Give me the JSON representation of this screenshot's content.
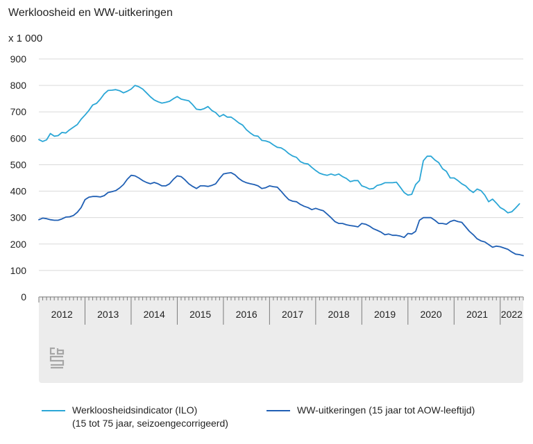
{
  "title": "Werkloosheid en WW-uitkeringen",
  "unit_label": "x 1 000",
  "colors": {
    "ilo": "#2aa6d6",
    "ww": "#1f5fb4",
    "axis_bg": "#ececec",
    "grid": "#d9d9d9",
    "logo": "#a6a6a6"
  },
  "logo": "cbs-logo",
  "chart_data": {
    "type": "line",
    "ylim": [
      0,
      900
    ],
    "yticks": [
      0,
      100,
      200,
      300,
      400,
      500,
      600,
      700,
      800,
      900
    ],
    "xlim": [
      "2012-01",
      "2022-07"
    ],
    "xlabels": [
      "2012",
      "2013",
      "2014",
      "2015",
      "2016",
      "2017",
      "2018",
      "2019",
      "2020",
      "2021",
      "2022"
    ],
    "series": [
      {
        "name": "Werkloosheidsindicator (ILO)",
        "name_line2": "(15 tot 75 jaar, seizoengecorrigeerd)",
        "color": "#2aa6d6",
        "points": [
          [
            "2012-01",
            595
          ],
          [
            "2012-02",
            588
          ],
          [
            "2012-03",
            594
          ],
          [
            "2012-04",
            618
          ],
          [
            "2012-05",
            608
          ],
          [
            "2012-06",
            610
          ],
          [
            "2012-07",
            622
          ],
          [
            "2012-08",
            620
          ],
          [
            "2012-09",
            632
          ],
          [
            "2012-10",
            642
          ],
          [
            "2012-11",
            652
          ],
          [
            "2012-12",
            672
          ],
          [
            "2013-01",
            688
          ],
          [
            "2013-02",
            705
          ],
          [
            "2013-03",
            726
          ],
          [
            "2013-04",
            732
          ],
          [
            "2013-05",
            748
          ],
          [
            "2013-06",
            768
          ],
          [
            "2013-07",
            781
          ],
          [
            "2013-08",
            782
          ],
          [
            "2013-09",
            784
          ],
          [
            "2013-10",
            780
          ],
          [
            "2013-11",
            772
          ],
          [
            "2013-12",
            778
          ],
          [
            "2014-01",
            786
          ],
          [
            "2014-02",
            800
          ],
          [
            "2014-03",
            795
          ],
          [
            "2014-04",
            786
          ],
          [
            "2014-05",
            772
          ],
          [
            "2014-06",
            757
          ],
          [
            "2014-07",
            745
          ],
          [
            "2014-08",
            738
          ],
          [
            "2014-09",
            733
          ],
          [
            "2014-10",
            736
          ],
          [
            "2014-11",
            740
          ],
          [
            "2014-12",
            750
          ],
          [
            "2015-01",
            758
          ],
          [
            "2015-02",
            748
          ],
          [
            "2015-03",
            745
          ],
          [
            "2015-04",
            742
          ],
          [
            "2015-05",
            727
          ],
          [
            "2015-06",
            710
          ],
          [
            "2015-07",
            708
          ],
          [
            "2015-08",
            712
          ],
          [
            "2015-09",
            720
          ],
          [
            "2015-10",
            705
          ],
          [
            "2015-11",
            697
          ],
          [
            "2015-12",
            682
          ],
          [
            "2016-01",
            690
          ],
          [
            "2016-02",
            680
          ],
          [
            "2016-03",
            680
          ],
          [
            "2016-04",
            670
          ],
          [
            "2016-05",
            658
          ],
          [
            "2016-06",
            650
          ],
          [
            "2016-07",
            632
          ],
          [
            "2016-08",
            620
          ],
          [
            "2016-09",
            610
          ],
          [
            "2016-10",
            608
          ],
          [
            "2016-11",
            592
          ],
          [
            "2016-12",
            590
          ],
          [
            "2017-01",
            585
          ],
          [
            "2017-02",
            575
          ],
          [
            "2017-03",
            566
          ],
          [
            "2017-04",
            564
          ],
          [
            "2017-05",
            555
          ],
          [
            "2017-06",
            542
          ],
          [
            "2017-07",
            533
          ],
          [
            "2017-08",
            528
          ],
          [
            "2017-09",
            512
          ],
          [
            "2017-10",
            505
          ],
          [
            "2017-11",
            503
          ],
          [
            "2017-12",
            490
          ],
          [
            "2018-01",
            478
          ],
          [
            "2018-02",
            468
          ],
          [
            "2018-03",
            463
          ],
          [
            "2018-04",
            460
          ],
          [
            "2018-05",
            465
          ],
          [
            "2018-06",
            460
          ],
          [
            "2018-07",
            465
          ],
          [
            "2018-08",
            455
          ],
          [
            "2018-09",
            448
          ],
          [
            "2018-10",
            436
          ],
          [
            "2018-11",
            440
          ],
          [
            "2018-12",
            440
          ],
          [
            "2019-01",
            420
          ],
          [
            "2019-02",
            415
          ],
          [
            "2019-03",
            408
          ],
          [
            "2019-04",
            410
          ],
          [
            "2019-05",
            422
          ],
          [
            "2019-06",
            425
          ],
          [
            "2019-07",
            432
          ],
          [
            "2019-08",
            432
          ],
          [
            "2019-09",
            432
          ],
          [
            "2019-10",
            434
          ],
          [
            "2019-11",
            415
          ],
          [
            "2019-12",
            395
          ],
          [
            "2020-01",
            385
          ],
          [
            "2020-02",
            388
          ],
          [
            "2020-03",
            425
          ],
          [
            "2020-04",
            440
          ],
          [
            "2020-05",
            515
          ],
          [
            "2020-06",
            532
          ],
          [
            "2020-07",
            532
          ],
          [
            "2020-08",
            518
          ],
          [
            "2020-09",
            508
          ],
          [
            "2020-10",
            485
          ],
          [
            "2020-11",
            475
          ],
          [
            "2020-12",
            450
          ],
          [
            "2021-01",
            450
          ],
          [
            "2021-02",
            440
          ],
          [
            "2021-03",
            428
          ],
          [
            "2021-04",
            420
          ],
          [
            "2021-05",
            405
          ],
          [
            "2021-06",
            395
          ],
          [
            "2021-07",
            408
          ],
          [
            "2021-08",
            402
          ],
          [
            "2021-09",
            385
          ],
          [
            "2021-10",
            360
          ],
          [
            "2021-11",
            370
          ],
          [
            "2021-12",
            355
          ],
          [
            "2022-01",
            338
          ],
          [
            "2022-02",
            330
          ],
          [
            "2022-03",
            318
          ],
          [
            "2022-04",
            322
          ],
          [
            "2022-05",
            336
          ],
          [
            "2022-06",
            352
          ]
        ]
      },
      {
        "name": "WW-uitkeringen (15 jaar tot AOW-leeftijd)",
        "color": "#1f5fb4",
        "points": [
          [
            "2012-01",
            292
          ],
          [
            "2012-02",
            298
          ],
          [
            "2012-03",
            296
          ],
          [
            "2012-04",
            292
          ],
          [
            "2012-05",
            290
          ],
          [
            "2012-06",
            290
          ],
          [
            "2012-07",
            295
          ],
          [
            "2012-08",
            302
          ],
          [
            "2012-09",
            303
          ],
          [
            "2012-10",
            308
          ],
          [
            "2012-11",
            320
          ],
          [
            "2012-12",
            338
          ],
          [
            "2013-01",
            368
          ],
          [
            "2013-02",
            377
          ],
          [
            "2013-03",
            380
          ],
          [
            "2013-04",
            380
          ],
          [
            "2013-05",
            378
          ],
          [
            "2013-06",
            383
          ],
          [
            "2013-07",
            395
          ],
          [
            "2013-08",
            398
          ],
          [
            "2013-09",
            402
          ],
          [
            "2013-10",
            412
          ],
          [
            "2013-11",
            425
          ],
          [
            "2013-12",
            445
          ],
          [
            "2014-01",
            460
          ],
          [
            "2014-02",
            458
          ],
          [
            "2014-03",
            450
          ],
          [
            "2014-04",
            440
          ],
          [
            "2014-05",
            433
          ],
          [
            "2014-06",
            428
          ],
          [
            "2014-07",
            433
          ],
          [
            "2014-08",
            428
          ],
          [
            "2014-09",
            420
          ],
          [
            "2014-10",
            420
          ],
          [
            "2014-11",
            428
          ],
          [
            "2014-12",
            445
          ],
          [
            "2015-01",
            458
          ],
          [
            "2015-02",
            455
          ],
          [
            "2015-03",
            443
          ],
          [
            "2015-04",
            428
          ],
          [
            "2015-05",
            418
          ],
          [
            "2015-06",
            410
          ],
          [
            "2015-07",
            420
          ],
          [
            "2015-08",
            420
          ],
          [
            "2015-09",
            418
          ],
          [
            "2015-10",
            422
          ],
          [
            "2015-11",
            428
          ],
          [
            "2015-12",
            448
          ],
          [
            "2016-01",
            465
          ],
          [
            "2016-02",
            468
          ],
          [
            "2016-03",
            470
          ],
          [
            "2016-04",
            462
          ],
          [
            "2016-05",
            448
          ],
          [
            "2016-06",
            438
          ],
          [
            "2016-07",
            432
          ],
          [
            "2016-08",
            428
          ],
          [
            "2016-09",
            425
          ],
          [
            "2016-10",
            420
          ],
          [
            "2016-11",
            410
          ],
          [
            "2016-12",
            413
          ],
          [
            "2017-01",
            420
          ],
          [
            "2017-02",
            417
          ],
          [
            "2017-03",
            415
          ],
          [
            "2017-04",
            400
          ],
          [
            "2017-05",
            383
          ],
          [
            "2017-06",
            368
          ],
          [
            "2017-07",
            362
          ],
          [
            "2017-08",
            360
          ],
          [
            "2017-09",
            350
          ],
          [
            "2017-10",
            343
          ],
          [
            "2017-11",
            338
          ],
          [
            "2017-12",
            330
          ],
          [
            "2018-01",
            335
          ],
          [
            "2018-02",
            330
          ],
          [
            "2018-03",
            326
          ],
          [
            "2018-04",
            313
          ],
          [
            "2018-05",
            300
          ],
          [
            "2018-06",
            285
          ],
          [
            "2018-07",
            278
          ],
          [
            "2018-08",
            278
          ],
          [
            "2018-09",
            273
          ],
          [
            "2018-10",
            270
          ],
          [
            "2018-11",
            268
          ],
          [
            "2018-12",
            265
          ],
          [
            "2019-01",
            278
          ],
          [
            "2019-02",
            275
          ],
          [
            "2019-03",
            268
          ],
          [
            "2019-04",
            258
          ],
          [
            "2019-05",
            252
          ],
          [
            "2019-06",
            245
          ],
          [
            "2019-07",
            235
          ],
          [
            "2019-08",
            238
          ],
          [
            "2019-09",
            233
          ],
          [
            "2019-10",
            233
          ],
          [
            "2019-11",
            230
          ],
          [
            "2019-12",
            225
          ],
          [
            "2020-01",
            240
          ],
          [
            "2020-02",
            238
          ],
          [
            "2020-03",
            248
          ],
          [
            "2020-04",
            290
          ],
          [
            "2020-05",
            300
          ],
          [
            "2020-06",
            300
          ],
          [
            "2020-07",
            300
          ],
          [
            "2020-08",
            290
          ],
          [
            "2020-09",
            278
          ],
          [
            "2020-10",
            278
          ],
          [
            "2020-11",
            275
          ],
          [
            "2020-12",
            285
          ],
          [
            "2021-01",
            290
          ],
          [
            "2021-02",
            285
          ],
          [
            "2021-03",
            282
          ],
          [
            "2021-04",
            265
          ],
          [
            "2021-05",
            248
          ],
          [
            "2021-06",
            235
          ],
          [
            "2021-07",
            220
          ],
          [
            "2021-08",
            212
          ],
          [
            "2021-09",
            208
          ],
          [
            "2021-10",
            198
          ],
          [
            "2021-11",
            188
          ],
          [
            "2021-12",
            192
          ],
          [
            "2022-01",
            190
          ],
          [
            "2022-02",
            185
          ],
          [
            "2022-03",
            180
          ],
          [
            "2022-04",
            170
          ],
          [
            "2022-05",
            162
          ],
          [
            "2022-06",
            160
          ],
          [
            "2022-07",
            156
          ]
        ]
      }
    ]
  }
}
